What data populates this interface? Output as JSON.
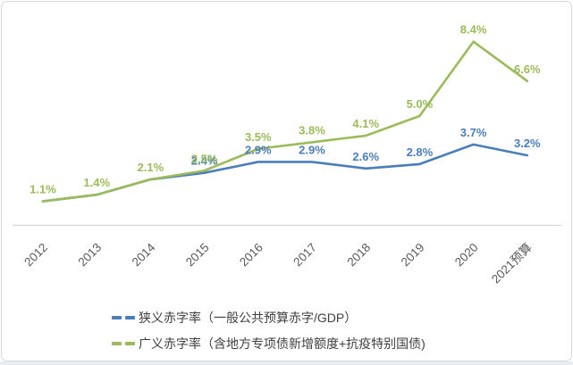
{
  "chart_data": {
    "type": "line",
    "title": "",
    "xlabel": "",
    "ylabel": "",
    "categories": [
      "2012",
      "2013",
      "2014",
      "2015",
      "2016",
      "2017",
      "2018",
      "2019",
      "2020",
      "2021预算"
    ],
    "series": [
      {
        "id": "narrow-deficit",
        "name": "狭义赤字率（一般公共预算赤字/GDP）",
        "color": "#4a7ebb",
        "values": [
          1.1,
          1.4,
          2.1,
          2.4,
          2.9,
          2.9,
          2.6,
          2.8,
          3.7,
          3.2
        ],
        "point_labels": [
          "",
          "",
          "",
          "2.4%",
          "2.9%",
          "2.9%",
          "2.6%",
          "2.8%",
          "3.7%",
          "3.2%"
        ]
      },
      {
        "id": "broad-deficit",
        "name": "广义赤字率（含地方专项债新增额度+抗疫特别国债)",
        "color": "#9bbb59",
        "values": [
          1.1,
          1.4,
          2.1,
          2.5,
          3.5,
          3.8,
          4.1,
          5.0,
          8.4,
          6.6
        ],
        "point_labels": [
          "1.1%",
          "1.4%",
          "2.1%",
          "2.5%",
          "3.5%",
          "3.8%",
          "4.1%",
          "5.0%",
          "8.4%",
          "6.6%"
        ]
      }
    ],
    "ylim": [
      0,
      10.3
    ],
    "grid": false,
    "legend_position": "bottom-left",
    "label_format": "percent",
    "colors": {
      "axis_line": "#d6d6d6",
      "tick_label": "#595959",
      "legend_text": "#404040",
      "frame_border": "#d8d8d8"
    }
  }
}
